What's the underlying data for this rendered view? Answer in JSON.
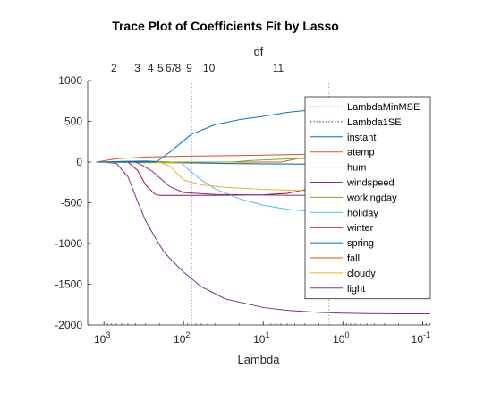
{
  "chart_data": {
    "type": "line",
    "title": "Trace Plot of Coefficients Fit by Lasso",
    "xlabel": "Lambda",
    "top_label": "df",
    "x_scale": "log",
    "x_direction": "reversed",
    "xlim": [
      1600,
      0.08
    ],
    "ylim": [
      -2000,
      1000
    ],
    "x_ticks": [
      {
        "value": 1000,
        "base": "10",
        "exp": "3"
      },
      {
        "value": 100,
        "base": "10",
        "exp": "2"
      },
      {
        "value": 10,
        "base": "10",
        "exp": "1"
      },
      {
        "value": 1,
        "base": "10",
        "exp": "0"
      },
      {
        "value": 0.1,
        "base": "10",
        "exp": "-1"
      }
    ],
    "y_ticks": [
      {
        "value": 1000,
        "label": "1000"
      },
      {
        "value": 500,
        "label": "500"
      },
      {
        "value": 0,
        "label": "0"
      },
      {
        "value": -500,
        "label": "-500"
      },
      {
        "value": -1000,
        "label": "-1000"
      },
      {
        "value": -1500,
        "label": "-1500"
      },
      {
        "value": -2000,
        "label": "-2000"
      }
    ],
    "df_ticks": [
      {
        "lambda": 750,
        "label": "2"
      },
      {
        "lambda": 380,
        "label": "3"
      },
      {
        "lambda": 260,
        "label": "4"
      },
      {
        "lambda": 195,
        "label": "5"
      },
      {
        "lambda": 155,
        "label": "6"
      },
      {
        "lambda": 135,
        "label": "7"
      },
      {
        "lambda": 118,
        "label": "8"
      },
      {
        "lambda": 85,
        "label": "9"
      },
      {
        "lambda": 48,
        "label": "10"
      },
      {
        "lambda": 6.5,
        "label": "11"
      }
    ],
    "reference_lines": [
      {
        "name": "LambdaMinMSE",
        "lambda": 1.5,
        "color": "#77AC30",
        "style": "dotted"
      },
      {
        "name": "Lambda1SE",
        "lambda": 80,
        "color": "#0A0A8A",
        "style": "dotted"
      }
    ],
    "series": [
      {
        "name": "instant",
        "color": "#0072BD",
        "points": [
          [
            1250,
            0
          ],
          [
            220,
            0
          ],
          [
            150,
            120
          ],
          [
            80,
            340
          ],
          [
            40,
            460
          ],
          [
            20,
            520
          ],
          [
            10,
            560
          ],
          [
            5,
            610
          ],
          [
            2,
            650
          ],
          [
            1,
            665
          ],
          [
            0.5,
            670
          ],
          [
            0.2,
            672
          ],
          [
            0.08,
            673
          ]
        ]
      },
      {
        "name": "atemp",
        "color": "#D95319",
        "points": [
          [
            1250,
            0
          ],
          [
            700,
            40
          ],
          [
            300,
            62
          ],
          [
            100,
            72
          ],
          [
            20,
            80
          ],
          [
            3,
            95
          ],
          [
            1,
            115
          ],
          [
            0.3,
            128
          ],
          [
            0.08,
            132
          ]
        ]
      },
      {
        "name": "hum",
        "color": "#EDB120",
        "points": [
          [
            1250,
            0
          ],
          [
            200,
            0
          ],
          [
            150,
            -50
          ],
          [
            100,
            -220
          ],
          [
            60,
            -280
          ],
          [
            30,
            -310
          ],
          [
            10,
            -335
          ],
          [
            3,
            -352
          ],
          [
            1,
            -360
          ],
          [
            0.3,
            -365
          ],
          [
            0.08,
            -368
          ]
        ]
      },
      {
        "name": "windspeed",
        "color": "#7E2F8E",
        "points": [
          [
            1250,
            0
          ],
          [
            400,
            0
          ],
          [
            350,
            -25
          ],
          [
            250,
            -110
          ],
          [
            150,
            -300
          ],
          [
            100,
            -375
          ],
          [
            40,
            -398
          ],
          [
            10,
            -405
          ],
          [
            3,
            -410
          ],
          [
            1,
            -412
          ],
          [
            0.08,
            -413
          ]
        ]
      },
      {
        "name": "workingday",
        "color": "#77AC30",
        "points": [
          [
            1250,
            0
          ],
          [
            25,
            0
          ],
          [
            15,
            18
          ],
          [
            5,
            38
          ],
          [
            1,
            55
          ],
          [
            0.3,
            62
          ],
          [
            0.08,
            64
          ]
        ]
      },
      {
        "name": "holiday",
        "color": "#4DBEEE",
        "points": [
          [
            1250,
            0
          ],
          [
            110,
            0
          ],
          [
            90,
            -80
          ],
          [
            60,
            -220
          ],
          [
            40,
            -330
          ],
          [
            20,
            -450
          ],
          [
            10,
            -530
          ],
          [
            5,
            -580
          ],
          [
            2,
            -615
          ],
          [
            1,
            -630
          ],
          [
            0.3,
            -640
          ],
          [
            0.08,
            -642
          ]
        ]
      },
      {
        "name": "winter",
        "color": "#A2142F",
        "points": [
          [
            1250,
            0
          ],
          [
            500,
            0
          ],
          [
            380,
            -100
          ],
          [
            300,
            -280
          ],
          [
            230,
            -395
          ],
          [
            200,
            -410
          ],
          [
            100,
            -410
          ],
          [
            30,
            -408
          ],
          [
            10,
            -402
          ],
          [
            5,
            -385
          ],
          [
            3,
            -340
          ],
          [
            1,
            -310
          ],
          [
            0.3,
            -300
          ],
          [
            0.08,
            -297
          ]
        ]
      },
      {
        "name": "spring",
        "color": "#0072BD",
        "points": [
          [
            1250,
            0
          ],
          [
            600,
            8
          ],
          [
            300,
            12
          ],
          [
            100,
            -5
          ],
          [
            30,
            -18
          ],
          [
            10,
            -22
          ],
          [
            2,
            -26
          ],
          [
            0.08,
            -28
          ]
        ]
      },
      {
        "name": "fall",
        "color": "#D95319",
        "points": [
          [
            1250,
            0
          ],
          [
            6,
            0
          ],
          [
            4,
            35
          ],
          [
            2,
            85
          ],
          [
            1,
            100
          ],
          [
            0.3,
            104
          ],
          [
            0.08,
            106
          ]
        ]
      },
      {
        "name": "cloudy",
        "color": "#EDB120",
        "points": [
          [
            1250,
            0
          ],
          [
            600,
            -5
          ],
          [
            200,
            -10
          ],
          [
            50,
            -15
          ],
          [
            10,
            -20
          ],
          [
            1,
            -25
          ],
          [
            0.08,
            -27
          ]
        ]
      },
      {
        "name": "light",
        "color": "#7E2F8E",
        "points": [
          [
            1250,
            0
          ],
          [
            1000,
            -2
          ],
          [
            700,
            -15
          ],
          [
            500,
            -180
          ],
          [
            380,
            -480
          ],
          [
            300,
            -720
          ],
          [
            230,
            -920
          ],
          [
            180,
            -1090
          ],
          [
            150,
            -1180
          ],
          [
            100,
            -1350
          ],
          [
            60,
            -1530
          ],
          [
            30,
            -1680
          ],
          [
            10,
            -1785
          ],
          [
            5,
            -1820
          ],
          [
            2,
            -1845
          ],
          [
            1,
            -1855
          ],
          [
            0.5,
            -1860
          ],
          [
            0.2,
            -1862
          ],
          [
            0.08,
            -1863
          ]
        ]
      }
    ],
    "legend": {
      "placement": "right",
      "entries": [
        "LambdaMinMSE",
        "Lambda1SE",
        "instant",
        "atemp",
        "hum",
        "windspeed",
        "workingday",
        "holiday",
        "winter",
        "spring",
        "fall",
        "cloudy",
        "light"
      ]
    }
  }
}
